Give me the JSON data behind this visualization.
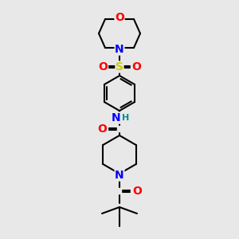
{
  "bg_color": "#e8e8e8",
  "atom_colors": {
    "O": "#ff0000",
    "N": "#0000ff",
    "S": "#cccc00",
    "C": "#000000",
    "H": "#008b8b",
    "bond": "#000000"
  },
  "line_width": 1.5,
  "figsize": [
    3.0,
    3.0
  ],
  "dpi": 100
}
